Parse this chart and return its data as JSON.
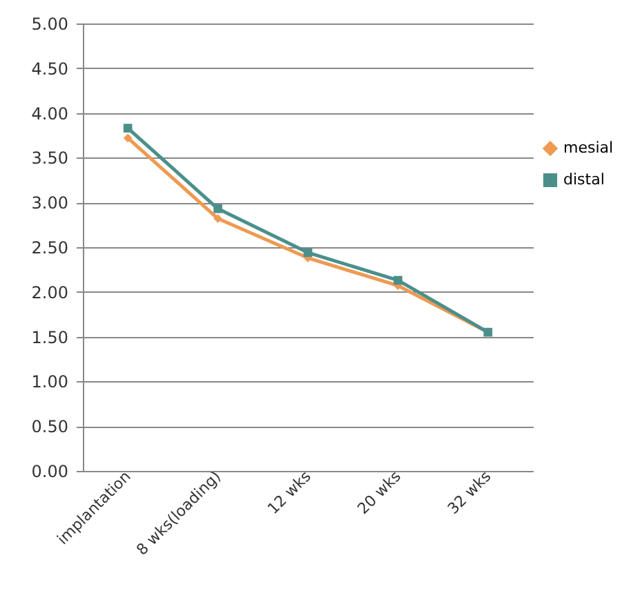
{
  "chart_data": {
    "type": "line",
    "categories": [
      "implantation",
      "8 wks(loading)",
      "12 wks",
      "20 wks",
      "32 wks"
    ],
    "series": [
      {
        "name": "mesial",
        "color": "#ee9a52",
        "marker": "diamond",
        "values": [
          3.72,
          2.82,
          2.38,
          2.07,
          1.55
        ]
      },
      {
        "name": "distal",
        "color": "#4b8f8b",
        "marker": "square",
        "values": [
          3.83,
          2.93,
          2.44,
          2.13,
          1.55
        ]
      }
    ],
    "ylim": [
      0,
      5
    ],
    "yticks": [
      {
        "value": 0,
        "label": "0.00"
      },
      {
        "value": 0.5,
        "label": "0.50"
      },
      {
        "value": 1,
        "label": "1.00"
      },
      {
        "value": 1.5,
        "label": "1.50"
      },
      {
        "value": 2,
        "label": "2.00"
      },
      {
        "value": 2.5,
        "label": "2.50"
      },
      {
        "value": 3,
        "label": "3.00"
      },
      {
        "value": 3.5,
        "label": "3.50"
      },
      {
        "value": 4,
        "label": "4.00"
      },
      {
        "value": 4.5,
        "label": "4.50"
      },
      {
        "value": 5,
        "label": "5.00"
      }
    ],
    "grid": "y",
    "legend": "right"
  }
}
